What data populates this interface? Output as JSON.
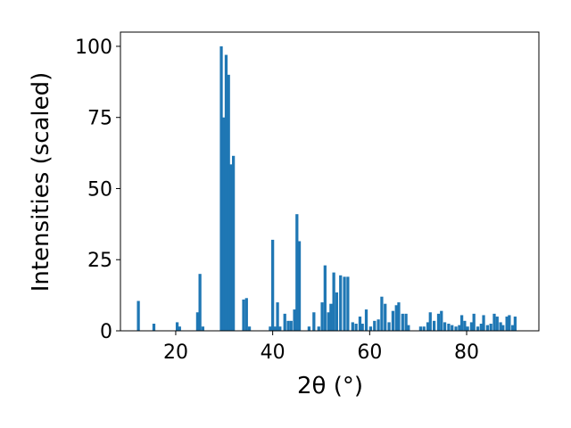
{
  "chart_data": {
    "type": "bar",
    "xlabel": "2θ (°)",
    "ylabel": "Intensities (scaled)",
    "color": "#1f77b4",
    "x": [
      12.3,
      15.5,
      20.3,
      20.8,
      24.5,
      25.0,
      25.6,
      29.4,
      29.9,
      30.4,
      30.9,
      31.4,
      31.9,
      34.0,
      34.6,
      35.2,
      39.5,
      40.0,
      40.5,
      41.0,
      41.5,
      42.5,
      43.2,
      43.8,
      44.5,
      45.0,
      45.5,
      47.5,
      48.5,
      49.5,
      50.2,
      50.8,
      51.5,
      52.0,
      52.6,
      53.2,
      54.0,
      54.8,
      55.5,
      56.5,
      57.2,
      58.0,
      58.5,
      59.3,
      60.2,
      61.0,
      61.8,
      62.5,
      63.2,
      64.0,
      64.8,
      65.5,
      66.0,
      66.8,
      67.5,
      68.0,
      70.5,
      71.2,
      72.0,
      72.5,
      73.3,
      74.2,
      74.8,
      75.5,
      76.3,
      77.0,
      77.8,
      78.5,
      79.0,
      79.6,
      80.2,
      81.0,
      81.5,
      82.3,
      83.0,
      83.5,
      84.3,
      85.0,
      85.7,
      86.3,
      87.0,
      87.5,
      88.3,
      88.8,
      89.5,
      90.0
    ],
    "values": [
      10.5,
      2.5,
      3,
      1.5,
      6.5,
      20,
      1.5,
      100,
      75,
      97,
      90,
      58.5,
      61.5,
      11,
      11.5,
      1.5,
      1.5,
      32,
      1.5,
      10,
      1.5,
      6,
      3.5,
      3.5,
      7.5,
      41,
      31.5,
      1.5,
      6.5,
      1.5,
      10,
      23,
      6.5,
      9.5,
      20.5,
      13.5,
      19.5,
      19,
      19,
      3,
      2.5,
      5,
      2.5,
      7.5,
      1.5,
      3.5,
      4,
      12,
      9.5,
      3,
      7,
      9,
      10,
      6,
      6,
      2,
      1.5,
      1.5,
      3,
      6.5,
      3.5,
      6,
      7,
      3,
      2.5,
      2,
      1.5,
      2,
      5.5,
      3.5,
      1.5,
      3,
      6,
      1.5,
      2.5,
      5.5,
      2,
      2.5,
      6,
      5,
      3,
      2,
      5,
      5.5,
      2,
      5
    ],
    "xlim": [
      8.6,
      94.9
    ],
    "ylim": [
      0,
      105
    ],
    "xticks": [
      20,
      40,
      60,
      80
    ],
    "yticks": [
      0,
      25,
      50,
      75,
      100
    ]
  }
}
